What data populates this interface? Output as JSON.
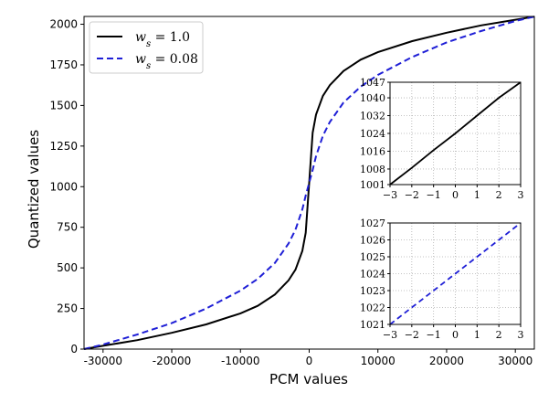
{
  "chart_data": {
    "type": "line",
    "xlabel": "PCM values",
    "ylabel": "Quantized values",
    "xlim": [
      -32768,
      32767
    ],
    "ylim": [
      0,
      2048
    ],
    "x_ticks": [
      -30000,
      -20000,
      -10000,
      0,
      10000,
      20000,
      30000
    ],
    "x_tick_labels": [
      "-30000",
      "-20000",
      "-10000",
      "0",
      "10000",
      "20000",
      "30000"
    ],
    "y_ticks": [
      0,
      250,
      500,
      750,
      1000,
      1250,
      1500,
      1750,
      2000
    ],
    "y_tick_labels": [
      "0",
      "250",
      "500",
      "750",
      "1000",
      "1250",
      "1500",
      "1750",
      "2000"
    ],
    "grid": false,
    "legend": {
      "placement": "upper-left",
      "entries": [
        {
          "label": "w_s = 1.0",
          "text_main": "w",
          "text_sub": "s",
          "text_rest": " = 1.0",
          "color": "#000000",
          "dash": "solid"
        },
        {
          "label": "w_s = 0.08",
          "text_main": "w",
          "text_sub": "s",
          "text_rest": " = 0.08",
          "color": "#1f1fd6",
          "dash": "dashed"
        }
      ]
    },
    "series": [
      {
        "color": "#000000",
        "dash": "solid",
        "x": [
          -32768,
          -30000,
          -25000,
          -20000,
          -15000,
          -10000,
          -7500,
          -5000,
          -3000,
          -2000,
          -1000,
          -500,
          0,
          500,
          1000,
          2000,
          3000,
          5000,
          7500,
          10000,
          15000,
          20000,
          25000,
          30000,
          32767
        ],
        "y": [
          0,
          20,
          55,
          100,
          152,
          220,
          266,
          336,
          423,
          489,
          604,
          716,
          1024,
          1332,
          1444,
          1559,
          1625,
          1712,
          1782,
          1828,
          1896,
          1948,
          1993,
          2028,
          2047
        ]
      },
      {
        "color": "#1f1fd6",
        "dash": "dashed",
        "x": [
          -32768,
          -30000,
          -25000,
          -20000,
          -15000,
          -10000,
          -7500,
          -5000,
          -3000,
          -2000,
          -1000,
          -500,
          0,
          500,
          1000,
          2000,
          3000,
          5000,
          7500,
          10000,
          15000,
          20000,
          25000,
          30000,
          32767
        ],
        "y": [
          0,
          28,
          90,
          160,
          250,
          360,
          432,
          530,
          650,
          735,
          860,
          945,
          1024,
          1103,
          1188,
          1313,
          1398,
          1518,
          1616,
          1688,
          1798,
          1888,
          1958,
          2020,
          2047
        ]
      }
    ],
    "insets": [
      {
        "xlim": [
          -3,
          3
        ],
        "ylim": [
          1001,
          1047
        ],
        "x_ticks": [
          -3,
          -2,
          -1,
          0,
          1,
          2,
          3
        ],
        "x_tick_labels": [
          "−3",
          "−2",
          "−1",
          "0",
          "1",
          "2",
          "3"
        ],
        "y_ticks": [
          1001,
          1008,
          1016,
          1024,
          1032,
          1040,
          1047
        ],
        "y_tick_labels": [
          "1001",
          "1008",
          "1016",
          "1024",
          "1032",
          "1040",
          "1047"
        ],
        "grid": true,
        "series": [
          {
            "color": "#000000",
            "dash": "solid",
            "x": [
              -3,
              -2,
              -1,
              0,
              1,
              2,
              3
            ],
            "y": [
              1001,
              1008.5,
              1016.5,
              1024,
              1032,
              1040,
              1047
            ]
          }
        ]
      },
      {
        "xlim": [
          -3,
          3
        ],
        "ylim": [
          1021,
          1027
        ],
        "x_ticks": [
          -3,
          -2,
          -1,
          0,
          1,
          2,
          3
        ],
        "x_tick_labels": [
          "−3",
          "−2",
          "−1",
          "0",
          "1",
          "2",
          "3"
        ],
        "y_ticks": [
          1021,
          1022,
          1023,
          1024,
          1025,
          1026,
          1027
        ],
        "y_tick_labels": [
          "1021",
          "1022",
          "1023",
          "1024",
          "1025",
          "1026",
          "1027"
        ],
        "grid": true,
        "series": [
          {
            "color": "#1f1fd6",
            "dash": "dashed",
            "x": [
              -3,
              -2,
              -1,
              0,
              1,
              2,
              3
            ],
            "y": [
              1021,
              1022,
              1023,
              1024,
              1025,
              1026,
              1027
            ]
          }
        ]
      }
    ]
  }
}
